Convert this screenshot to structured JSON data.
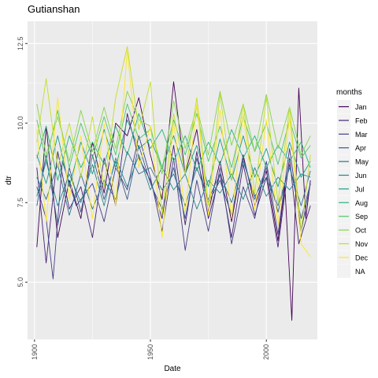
{
  "chart_data": {
    "type": "line",
    "title": "Gutianshan",
    "xlabel": "Date",
    "ylabel": "dtr",
    "xlim": [
      1897,
      2022
    ],
    "ylim": [
      3.2,
      13.2
    ],
    "x_ticks": [
      1900,
      1950,
      2000
    ],
    "x_tick_labels": [
      "1900",
      "1950",
      "2000"
    ],
    "y_ticks": [
      5.0,
      7.5,
      10.0,
      12.5
    ],
    "y_tick_labels": [
      "5.0",
      "7.5",
      "10.0",
      "12.5"
    ],
    "grid": true,
    "background": "#EBEBEB",
    "legend": {
      "title": "months",
      "position": "right",
      "entries": [
        "Jan",
        "Feb",
        "Mar",
        "Apr",
        "May",
        "Jun",
        "Jul",
        "Aug",
        "Sep",
        "Oct",
        "Nov",
        "Dec",
        "NA"
      ]
    },
    "series": [
      {
        "name": "Jan",
        "color": "#440154",
        "points": [
          [
            1901,
            6.1
          ],
          [
            1905,
            9.9
          ],
          [
            1910,
            6.4
          ],
          [
            1915,
            8.2
          ],
          [
            1920,
            7.0
          ],
          [
            1925,
            9.4
          ],
          [
            1930,
            7.8
          ],
          [
            1935,
            10.0
          ],
          [
            1940,
            9.6
          ],
          [
            1945,
            10.8
          ],
          [
            1950,
            9.0
          ],
          [
            1955,
            7.6
          ],
          [
            1960,
            11.3
          ],
          [
            1965,
            8.4
          ],
          [
            1970,
            9.8
          ],
          [
            1975,
            7.2
          ],
          [
            1980,
            8.8
          ],
          [
            1985,
            6.9
          ],
          [
            1990,
            9.0
          ],
          [
            1995,
            7.4
          ],
          [
            2000,
            8.5
          ],
          [
            2005,
            6.3
          ],
          [
            2008,
            8.0
          ],
          [
            2011,
            3.8
          ],
          [
            2014,
            11.1
          ],
          [
            2017,
            7.0
          ],
          [
            2019,
            8.2
          ]
        ]
      },
      {
        "name": "Feb",
        "color": "#482173",
        "points": [
          [
            1901,
            8.6
          ],
          [
            1905,
            5.6
          ],
          [
            1910,
            9.1
          ],
          [
            1915,
            7.3
          ],
          [
            1920,
            8.0
          ],
          [
            1925,
            6.4
          ],
          [
            1930,
            8.9
          ],
          [
            1935,
            7.4
          ],
          [
            1940,
            10.3
          ],
          [
            1945,
            8.9
          ],
          [
            1950,
            8.2
          ],
          [
            1955,
            7.0
          ],
          [
            1960,
            9.3
          ],
          [
            1965,
            6.8
          ],
          [
            1970,
            9.1
          ],
          [
            1975,
            7.0
          ],
          [
            1980,
            8.4
          ],
          [
            1985,
            6.4
          ],
          [
            1990,
            8.7
          ],
          [
            1995,
            7.1
          ],
          [
            2000,
            8.3
          ],
          [
            2005,
            6.1
          ],
          [
            2010,
            8.9
          ],
          [
            2014,
            6.2
          ],
          [
            2019,
            7.4
          ]
        ]
      },
      {
        "name": "Mar",
        "color": "#433E85",
        "points": [
          [
            1901,
            8.0
          ],
          [
            1905,
            7.0
          ],
          [
            1908,
            5.1
          ],
          [
            1912,
            8.8
          ],
          [
            1918,
            7.4
          ],
          [
            1925,
            8.1
          ],
          [
            1930,
            6.9
          ],
          [
            1935,
            8.6
          ],
          [
            1940,
            7.9
          ],
          [
            1945,
            9.6
          ],
          [
            1950,
            8.3
          ],
          [
            1955,
            6.6
          ],
          [
            1960,
            8.9
          ],
          [
            1965,
            6.0
          ],
          [
            1970,
            8.2
          ],
          [
            1975,
            6.6
          ],
          [
            1980,
            8.6
          ],
          [
            1985,
            6.2
          ],
          [
            1990,
            8.0
          ],
          [
            1995,
            7.0
          ],
          [
            2000,
            8.8
          ],
          [
            2005,
            6.5
          ],
          [
            2010,
            9.2
          ],
          [
            2015,
            6.6
          ],
          [
            2019,
            8.1
          ]
        ]
      },
      {
        "name": "Apr",
        "color": "#38598C",
        "points": [
          [
            1901,
            7.4
          ],
          [
            1905,
            9.0
          ],
          [
            1910,
            6.8
          ],
          [
            1915,
            8.6
          ],
          [
            1920,
            7.2
          ],
          [
            1925,
            9.0
          ],
          [
            1930,
            7.6
          ],
          [
            1935,
            8.8
          ],
          [
            1940,
            7.6
          ],
          [
            1945,
            9.3
          ],
          [
            1950,
            8.1
          ],
          [
            1955,
            7.3
          ],
          [
            1960,
            8.6
          ],
          [
            1965,
            7.0
          ],
          [
            1970,
            8.9
          ],
          [
            1975,
            7.5
          ],
          [
            1980,
            8.2
          ],
          [
            1985,
            7.1
          ],
          [
            1990,
            8.9
          ],
          [
            1995,
            7.6
          ],
          [
            2000,
            8.6
          ],
          [
            2005,
            7.2
          ],
          [
            2010,
            8.7
          ],
          [
            2015,
            7.0
          ],
          [
            2019,
            8.1
          ]
        ]
      },
      {
        "name": "May",
        "color": "#2D708E",
        "points": [
          [
            1901,
            8.3
          ],
          [
            1905,
            7.6
          ],
          [
            1910,
            8.7
          ],
          [
            1915,
            7.1
          ],
          [
            1920,
            8.4
          ],
          [
            1925,
            7.3
          ],
          [
            1930,
            8.2
          ],
          [
            1935,
            7.6
          ],
          [
            1940,
            9.1
          ],
          [
            1945,
            8.4
          ],
          [
            1950,
            8.6
          ],
          [
            1955,
            7.9
          ],
          [
            1960,
            8.4
          ],
          [
            1965,
            7.4
          ],
          [
            1970,
            8.6
          ],
          [
            1975,
            7.6
          ],
          [
            1980,
            8.4
          ],
          [
            1985,
            7.5
          ],
          [
            1990,
            8.8
          ],
          [
            1995,
            7.7
          ],
          [
            2000,
            8.3
          ],
          [
            2005,
            7.4
          ],
          [
            2010,
            8.6
          ],
          [
            2015,
            7.4
          ],
          [
            2019,
            8.5
          ]
        ]
      },
      {
        "name": "Jun",
        "color": "#25858E",
        "points": [
          [
            1901,
            7.7
          ],
          [
            1905,
            8.8
          ],
          [
            1910,
            7.4
          ],
          [
            1915,
            8.4
          ],
          [
            1920,
            7.5
          ],
          [
            1925,
            8.7
          ],
          [
            1930,
            7.4
          ],
          [
            1935,
            8.9
          ],
          [
            1940,
            8.0
          ],
          [
            1945,
            9.0
          ],
          [
            1950,
            7.9
          ],
          [
            1955,
            8.6
          ],
          [
            1960,
            7.9
          ],
          [
            1965,
            8.4
          ],
          [
            1970,
            7.3
          ],
          [
            1975,
            8.2
          ],
          [
            1980,
            7.8
          ],
          [
            1985,
            8.4
          ],
          [
            1990,
            7.6
          ],
          [
            1995,
            8.6
          ],
          [
            2000,
            7.7
          ],
          [
            2005,
            8.3
          ],
          [
            2010,
            7.9
          ],
          [
            2015,
            8.4
          ],
          [
            2019,
            8.3
          ]
        ]
      },
      {
        "name": "Jul",
        "color": "#1E9B8A",
        "points": [
          [
            1901,
            9.0
          ],
          [
            1905,
            8.1
          ],
          [
            1910,
            9.6
          ],
          [
            1915,
            8.0
          ],
          [
            1920,
            9.4
          ],
          [
            1925,
            8.4
          ],
          [
            1930,
            9.8
          ],
          [
            1935,
            8.6
          ],
          [
            1940,
            10.1
          ],
          [
            1945,
            9.2
          ],
          [
            1950,
            9.5
          ],
          [
            1955,
            8.6
          ],
          [
            1960,
            9.6
          ],
          [
            1965,
            8.4
          ],
          [
            1970,
            9.3
          ],
          [
            1975,
            8.0
          ],
          [
            1980,
            9.5
          ],
          [
            1985,
            8.2
          ],
          [
            1990,
            9.6
          ],
          [
            1995,
            8.3
          ],
          [
            2000,
            9.2
          ],
          [
            2005,
            8.0
          ],
          [
            2010,
            9.4
          ],
          [
            2015,
            8.3
          ],
          [
            2019,
            8.8
          ]
        ]
      },
      {
        "name": "Aug",
        "color": "#2BB07F",
        "points": [
          [
            1901,
            8.9
          ],
          [
            1905,
            9.9
          ],
          [
            1910,
            8.2
          ],
          [
            1915,
            9.6
          ],
          [
            1920,
            8.6
          ],
          [
            1925,
            9.4
          ],
          [
            1930,
            8.7
          ],
          [
            1935,
            9.9
          ],
          [
            1940,
            9.0
          ],
          [
            1945,
            10.3
          ],
          [
            1950,
            9.2
          ],
          [
            1955,
            9.8
          ],
          [
            1960,
            8.8
          ],
          [
            1965,
            9.6
          ],
          [
            1970,
            8.5
          ],
          [
            1975,
            9.4
          ],
          [
            1980,
            8.7
          ],
          [
            1985,
            9.8
          ],
          [
            1990,
            8.9
          ],
          [
            1995,
            9.6
          ],
          [
            2000,
            8.6
          ],
          [
            2005,
            9.3
          ],
          [
            2010,
            8.8
          ],
          [
            2015,
            9.4
          ],
          [
            2019,
            8.6
          ]
        ]
      },
      {
        "name": "Sep",
        "color": "#51C56A",
        "points": [
          [
            1901,
            10.1
          ],
          [
            1905,
            8.8
          ],
          [
            1910,
            10.4
          ],
          [
            1915,
            8.6
          ],
          [
            1920,
            10.0
          ],
          [
            1925,
            8.9
          ],
          [
            1930,
            10.2
          ],
          [
            1935,
            9.0
          ],
          [
            1940,
            10.6
          ],
          [
            1945,
            9.5
          ],
          [
            1950,
            9.8
          ],
          [
            1955,
            8.6
          ],
          [
            1960,
            10.1
          ],
          [
            1965,
            9.0
          ],
          [
            1970,
            10.3
          ],
          [
            1975,
            8.8
          ],
          [
            1980,
            9.9
          ],
          [
            1985,
            8.6
          ],
          [
            1990,
            10.2
          ],
          [
            1995,
            9.1
          ],
          [
            2000,
            10.0
          ],
          [
            2005,
            8.7
          ],
          [
            2010,
            10.1
          ],
          [
            2015,
            8.9
          ],
          [
            2019,
            9.3
          ]
        ]
      },
      {
        "name": "Oct",
        "color": "#85D54A",
        "points": [
          [
            1901,
            10.6
          ],
          [
            1905,
            9.0
          ],
          [
            1910,
            10.2
          ],
          [
            1915,
            8.8
          ],
          [
            1920,
            10.4
          ],
          [
            1925,
            9.1
          ],
          [
            1930,
            10.5
          ],
          [
            1935,
            9.2
          ],
          [
            1940,
            11.0
          ],
          [
            1945,
            10.1
          ],
          [
            1950,
            9.9
          ],
          [
            1955,
            8.4
          ],
          [
            1960,
            10.7
          ],
          [
            1965,
            9.2
          ],
          [
            1970,
            10.5
          ],
          [
            1975,
            9.0
          ],
          [
            1980,
            11.0
          ],
          [
            1985,
            9.3
          ],
          [
            1990,
            10.6
          ],
          [
            1995,
            9.1
          ],
          [
            2000,
            10.9
          ],
          [
            2005,
            9.2
          ],
          [
            2010,
            10.5
          ],
          [
            2015,
            9.0
          ],
          [
            2019,
            9.6
          ]
        ]
      },
      {
        "name": "Nov",
        "color": "#C2DF23",
        "points": [
          [
            1901,
            9.4
          ],
          [
            1905,
            11.4
          ],
          [
            1910,
            8.6
          ],
          [
            1915,
            10.0
          ],
          [
            1920,
            8.3
          ],
          [
            1925,
            10.2
          ],
          [
            1930,
            8.0
          ],
          [
            1935,
            10.8
          ],
          [
            1940,
            12.4
          ],
          [
            1945,
            9.8
          ],
          [
            1950,
            11.3
          ],
          [
            1955,
            7.1
          ],
          [
            1960,
            10.3
          ],
          [
            1965,
            8.4
          ],
          [
            1970,
            10.8
          ],
          [
            1975,
            7.4
          ],
          [
            1980,
            10.9
          ],
          [
            1985,
            8.2
          ],
          [
            1990,
            10.6
          ],
          [
            1995,
            7.8
          ],
          [
            2000,
            10.8
          ],
          [
            2005,
            7.5
          ],
          [
            2010,
            10.5
          ],
          [
            2015,
            6.6
          ],
          [
            2019,
            9.0
          ]
        ]
      },
      {
        "name": "Dec",
        "color": "#FDE725",
        "points": [
          [
            1901,
            9.8
          ],
          [
            1905,
            6.9
          ],
          [
            1910,
            10.8
          ],
          [
            1915,
            7.6
          ],
          [
            1920,
            9.6
          ],
          [
            1925,
            7.0
          ],
          [
            1930,
            10.0
          ],
          [
            1935,
            7.4
          ],
          [
            1940,
            12.3
          ],
          [
            1945,
            8.6
          ],
          [
            1950,
            9.9
          ],
          [
            1955,
            6.4
          ],
          [
            1960,
            10.0
          ],
          [
            1965,
            7.2
          ],
          [
            1970,
            10.6
          ],
          [
            1975,
            7.1
          ],
          [
            1980,
            10.4
          ],
          [
            1985,
            7.0
          ],
          [
            1990,
            10.3
          ],
          [
            1995,
            7.3
          ],
          [
            2000,
            10.1
          ],
          [
            2005,
            6.8
          ],
          [
            2010,
            10.2
          ],
          [
            2015,
            6.2
          ],
          [
            2019,
            5.8
          ]
        ]
      }
    ]
  }
}
